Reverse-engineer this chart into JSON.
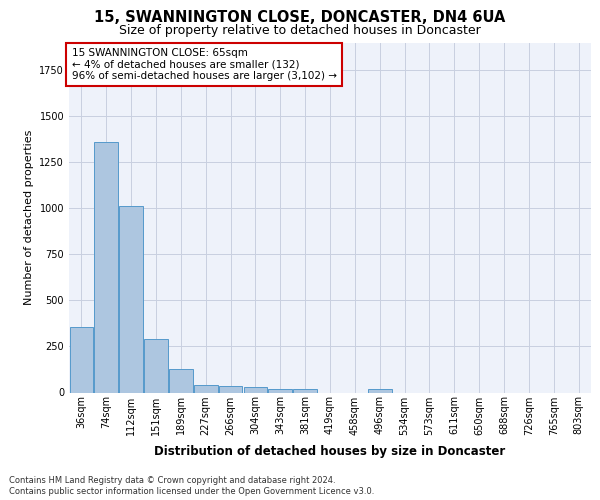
{
  "title1": "15, SWANNINGTON CLOSE, DONCASTER, DN4 6UA",
  "title2": "Size of property relative to detached houses in Doncaster",
  "xlabel": "Distribution of detached houses by size in Doncaster",
  "ylabel": "Number of detached properties",
  "categories": [
    "36sqm",
    "74sqm",
    "112sqm",
    "151sqm",
    "189sqm",
    "227sqm",
    "266sqm",
    "304sqm",
    "343sqm",
    "381sqm",
    "419sqm",
    "458sqm",
    "496sqm",
    "534sqm",
    "573sqm",
    "611sqm",
    "650sqm",
    "688sqm",
    "726sqm",
    "765sqm",
    "803sqm"
  ],
  "values": [
    355,
    1360,
    1010,
    290,
    130,
    42,
    35,
    30,
    20,
    18,
    0,
    0,
    20,
    0,
    0,
    0,
    0,
    0,
    0,
    0,
    0
  ],
  "bar_color": "#adc6e0",
  "bar_edge_color": "#5599cc",
  "annotation_text": "15 SWANNINGTON CLOSE: 65sqm\n← 4% of detached houses are smaller (132)\n96% of semi-detached houses are larger (3,102) →",
  "annotation_box_color": "#ffffff",
  "annotation_border_color": "#cc0000",
  "footer1": "Contains HM Land Registry data © Crown copyright and database right 2024.",
  "footer2": "Contains public sector information licensed under the Open Government Licence v3.0.",
  "ylim": [
    0,
    1900
  ],
  "bg_color": "#eef2fa",
  "grid_color": "#c8cfe0",
  "title1_fontsize": 10.5,
  "title2_fontsize": 9,
  "ylabel_fontsize": 8,
  "xlabel_fontsize": 8.5,
  "tick_fontsize": 7,
  "annotation_fontsize": 7.5,
  "footer_fontsize": 6
}
